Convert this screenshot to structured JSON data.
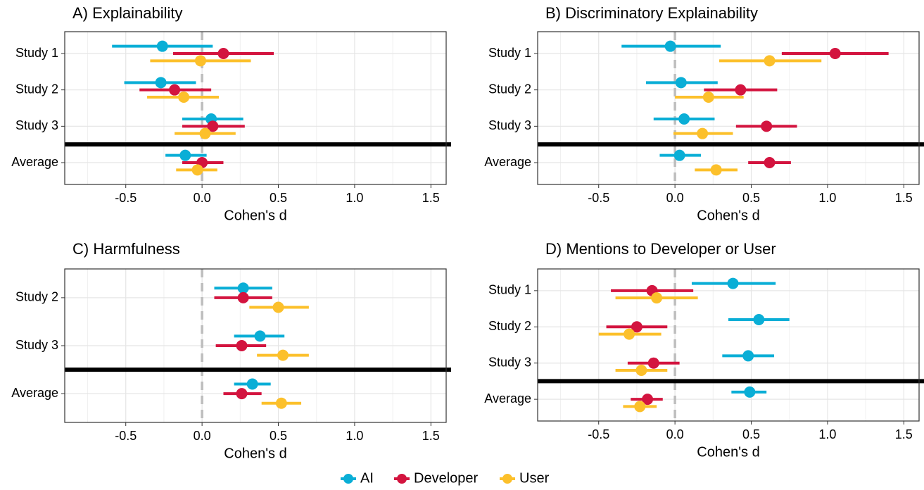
{
  "chart_data": [
    {
      "type": "forest",
      "title": "A) Explainability",
      "xlabel": "Cohen's d",
      "categories": [
        "Study 1",
        "Study 2",
        "Study 3",
        "Average"
      ],
      "xlim": [
        -0.9,
        1.6
      ],
      "xticks": [
        -0.5,
        {
          "value": 0,
          "label": "0.0"
        },
        0.5,
        {
          "value": 1,
          "label": "1.0"
        },
        1.5
      ],
      "reference_line": 0,
      "grid": true,
      "series": [
        {
          "name": "AI",
          "color": "#0aaed6",
          "values": [
            -0.26,
            -0.27,
            0.06,
            -0.11
          ],
          "lower": [
            -0.59,
            -0.51,
            -0.13,
            -0.24
          ],
          "upper": [
            0.07,
            -0.04,
            0.27,
            0.03
          ]
        },
        {
          "name": "Developer",
          "color": "#d3143f",
          "values": [
            0.14,
            -0.18,
            0.07,
            0.0
          ],
          "lower": [
            -0.19,
            -0.41,
            -0.13,
            -0.13
          ],
          "upper": [
            0.47,
            0.06,
            0.28,
            0.14
          ]
        },
        {
          "name": "User",
          "color": "#fcc02b",
          "values": [
            -0.01,
            -0.12,
            0.02,
            -0.03
          ],
          "lower": [
            -0.34,
            -0.36,
            -0.18,
            -0.17
          ],
          "upper": [
            0.32,
            0.11,
            0.22,
            0.1
          ]
        }
      ]
    },
    {
      "type": "forest",
      "title": "B) Discriminatory Explainability",
      "xlabel": "Cohen's d",
      "categories": [
        "Study 1",
        "Study 2",
        "Study 3",
        "Average"
      ],
      "xlim": [
        -0.9,
        1.6
      ],
      "xticks": [
        -0.5,
        {
          "value": 0,
          "label": "0.0"
        },
        0.5,
        {
          "value": 1,
          "label": "1.0"
        },
        1.5
      ],
      "reference_line": 0,
      "grid": true,
      "series": [
        {
          "name": "AI",
          "color": "#0aaed6",
          "values": [
            -0.03,
            0.04,
            0.06,
            0.03
          ],
          "lower": [
            -0.35,
            -0.19,
            -0.14,
            -0.1
          ],
          "upper": [
            0.3,
            0.28,
            0.26,
            0.17
          ]
        },
        {
          "name": "Developer",
          "color": "#d3143f",
          "values": [
            1.05,
            0.43,
            0.6,
            0.62
          ],
          "lower": [
            0.7,
            0.19,
            0.4,
            0.48
          ],
          "upper": [
            1.4,
            0.67,
            0.8,
            0.76
          ]
        },
        {
          "name": "User",
          "color": "#fcc02b",
          "values": [
            0.62,
            0.22,
            0.18,
            0.27
          ],
          "lower": [
            0.29,
            0.0,
            -0.01,
            0.13
          ],
          "upper": [
            0.96,
            0.45,
            0.38,
            0.41
          ]
        }
      ]
    },
    {
      "type": "forest",
      "title": "C) Harmfulness",
      "xlabel": "Cohen's d",
      "categories": [
        "Study 2",
        "Study 3",
        "Average"
      ],
      "xlim": [
        -0.9,
        1.6
      ],
      "xticks": [
        -0.5,
        {
          "value": 0,
          "label": "0.0"
        },
        0.5,
        {
          "value": 1,
          "label": "1.0"
        },
        1.5
      ],
      "reference_line": 0,
      "grid": true,
      "series": [
        {
          "name": "AI",
          "color": "#0aaed6",
          "values": [
            0.27,
            0.38,
            0.33
          ],
          "lower": [
            0.08,
            0.21,
            0.21
          ],
          "upper": [
            0.46,
            0.54,
            0.45
          ]
        },
        {
          "name": "Developer",
          "color": "#d3143f",
          "values": [
            0.27,
            0.26,
            0.26
          ],
          "lower": [
            0.08,
            0.09,
            0.14
          ],
          "upper": [
            0.46,
            0.42,
            0.39
          ]
        },
        {
          "name": "User",
          "color": "#fcc02b",
          "values": [
            0.5,
            0.53,
            0.52
          ],
          "lower": [
            0.31,
            0.36,
            0.39
          ],
          "upper": [
            0.7,
            0.7,
            0.65
          ]
        }
      ]
    },
    {
      "type": "forest",
      "title": "D) Mentions to Developer or User",
      "xlabel": "Cohen's d",
      "categories": [
        "Study 1",
        "Study 2",
        "Study 3",
        "Average"
      ],
      "xlim": [
        -0.9,
        1.6
      ],
      "xticks": [
        -0.5,
        {
          "value": 0,
          "label": "0.0"
        },
        0.5,
        {
          "value": 1,
          "label": "1.0"
        },
        1.5
      ],
      "reference_line": 0,
      "grid": true,
      "series": [
        {
          "name": "AI",
          "color": "#0aaed6",
          "values": [
            0.38,
            0.55,
            0.48,
            0.49
          ],
          "lower": [
            0.11,
            0.35,
            0.31,
            0.37
          ],
          "upper": [
            0.66,
            0.75,
            0.65,
            0.6
          ]
        },
        {
          "name": "Developer",
          "color": "#d3143f",
          "values": [
            -0.15,
            -0.25,
            -0.14,
            -0.18
          ],
          "lower": [
            -0.42,
            -0.45,
            -0.31,
            -0.29
          ],
          "upper": [
            0.12,
            -0.05,
            0.03,
            -0.08
          ]
        },
        {
          "name": "User",
          "color": "#fcc02b",
          "values": [
            -0.12,
            -0.3,
            -0.22,
            -0.23
          ],
          "lower": [
            -0.39,
            -0.5,
            -0.39,
            -0.34
          ],
          "upper": [
            0.15,
            -0.09,
            -0.05,
            -0.12
          ]
        }
      ]
    }
  ]
}
